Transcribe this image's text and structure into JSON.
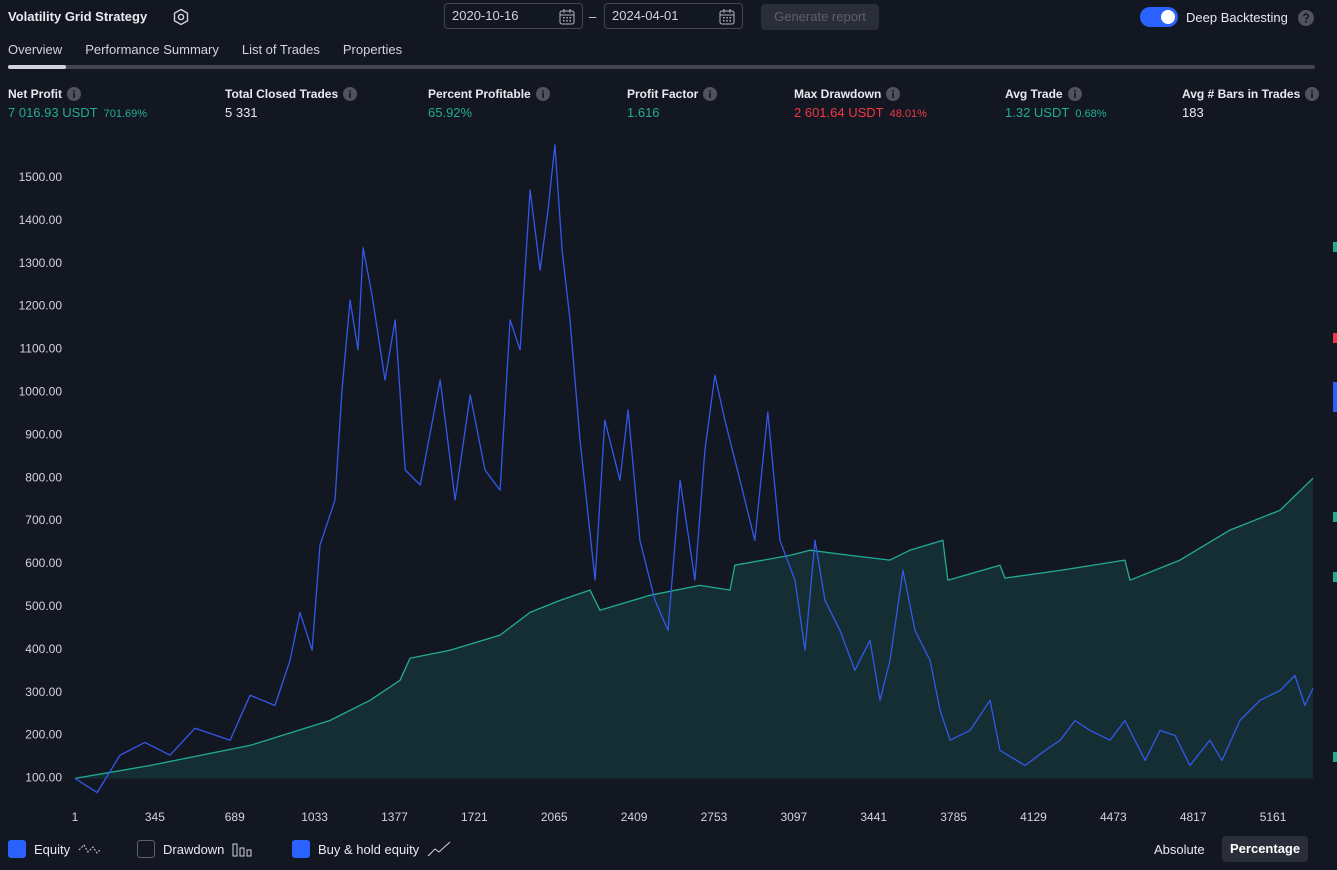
{
  "header": {
    "title": "Volatility Grid Strategy",
    "start_date": "2020-10-16",
    "separator": "–",
    "end_date": "2024-04-01",
    "generate_button": "Generate report",
    "deep_backtesting": "Deep Backtesting"
  },
  "tabs": [
    "Overview",
    "Performance Summary",
    "List of Trades",
    "Properties"
  ],
  "stats": [
    {
      "label": "Net Profit",
      "value": "7 016.93 USDT",
      "percent": "701.69%"
    },
    {
      "label": "Total Closed Trades",
      "value": "5 331"
    },
    {
      "label": "Percent Profitable",
      "value": "65.92%"
    },
    {
      "label": "Profit Factor",
      "value": "1.616"
    },
    {
      "label": "Max Drawdown",
      "value": "2 601.64 USDT",
      "percent": "48.01%"
    },
    {
      "label": "Avg Trade",
      "value": "1.32 USDT",
      "percent": "0.68%"
    },
    {
      "label": "Avg # Bars in Trades",
      "value": "183"
    }
  ],
  "chart_data": {
    "type": "line",
    "xlim": [
      1,
      5333
    ],
    "ylim": [
      45,
      1600
    ],
    "xticks": [
      1,
      345,
      689,
      1033,
      1377,
      1721,
      2065,
      2409,
      2753,
      3097,
      3441,
      3785,
      4129,
      4473,
      4817,
      5161
    ],
    "yticks": [
      {
        "value": 100,
        "label": "100.00"
      },
      {
        "value": 200,
        "label": "200.00"
      },
      {
        "value": 300,
        "label": "300.00"
      },
      {
        "value": 400,
        "label": "400.00"
      },
      {
        "value": 500,
        "label": "500.00"
      },
      {
        "value": 600,
        "label": "600.00"
      },
      {
        "value": 700,
        "label": "700.00"
      },
      {
        "value": 800,
        "label": "800.00"
      },
      {
        "value": 900,
        "label": "900.00"
      },
      {
        "value": 1000,
        "label": "1000.00"
      },
      {
        "value": 1100,
        "label": "1100.00"
      },
      {
        "value": 1200,
        "label": "1200.00"
      },
      {
        "value": 1300,
        "label": "1300.00"
      },
      {
        "value": 1400,
        "label": "1400.00"
      },
      {
        "value": 1500,
        "label": "1500.00"
      }
    ],
    "series": [
      {
        "name": "Equity",
        "color": "#3358e8",
        "x": [
          1,
          96,
          195,
          302,
          410,
          518,
          669,
          755,
          862,
          927,
          970,
          1022,
          1056,
          1121,
          1151,
          1186,
          1220,
          1242,
          1280,
          1336,
          1380,
          1423,
          1488,
          1574,
          1638,
          1703,
          1767,
          1832,
          1875,
          1918,
          1961,
          2004,
          2038,
          2068,
          2099,
          2133,
          2176,
          2241,
          2283,
          2348,
          2383,
          2434,
          2499,
          2555,
          2607,
          2671,
          2714,
          2757,
          2800,
          2865,
          2929,
          2985,
          3037,
          3102,
          3145,
          3188,
          3231,
          3296,
          3360,
          3425,
          3468,
          3511,
          3567,
          3619,
          3684,
          3727,
          3770,
          3856,
          3942,
          3985,
          4093,
          4179,
          4244,
          4308,
          4373,
          4459,
          4523,
          4610,
          4674,
          4739,
          4803,
          4889,
          4941,
          5018,
          5105,
          5191,
          5255,
          5298,
          5333
        ],
        "values": [
          100,
          67,
          154,
          184,
          154,
          217,
          189,
          294,
          270,
          375,
          487,
          399,
          644,
          749,
          1005,
          1215,
          1099,
          1337,
          1227,
          1029,
          1169,
          819,
          784,
          1029,
          749,
          994,
          819,
          772,
          1169,
          1099,
          1472,
          1285,
          1425,
          1577,
          1332,
          1169,
          889,
          562,
          935,
          795,
          959,
          655,
          515,
          445,
          795,
          562,
          865,
          1040,
          935,
          795,
          655,
          954,
          655,
          562,
          399,
          655,
          515,
          445,
          352,
          422,
          282,
          375,
          585,
          445,
          375,
          259,
          189,
          212,
          282,
          165,
          130,
          165,
          189,
          235,
          212,
          189,
          235,
          142,
          212,
          200,
          130,
          189,
          142,
          235,
          282,
          305,
          340,
          270,
          310
        ]
      },
      {
        "name": "Buy & hold equity",
        "color": "#22ab94",
        "fill": "rgba(34,171,148,0.16)",
        "x": [
          1,
          324,
          755,
          1099,
          1272,
          1401,
          1444,
          1616,
          1832,
          1961,
          2090,
          2219,
          2262,
          2477,
          2693,
          2822,
          2843,
          3080,
          3166,
          3339,
          3511,
          3597,
          3739,
          3760,
          3985,
          4006,
          4244,
          4523,
          4545,
          4760,
          4975,
          5191,
          5333
        ],
        "values": [
          100,
          130,
          177,
          235,
          282,
          329,
          380,
          399,
          434,
          487,
          515,
          539,
          492,
          527,
          550,
          539,
          597,
          620,
          632,
          620,
          609,
          632,
          655,
          562,
          597,
          567,
          585,
          609,
          562,
          609,
          679,
          725,
          800
        ]
      }
    ]
  },
  "footer": {
    "toggles": [
      "Drawdown"
    ],
    "absolute": "Absolute",
    "percentage": "Percentage"
  }
}
